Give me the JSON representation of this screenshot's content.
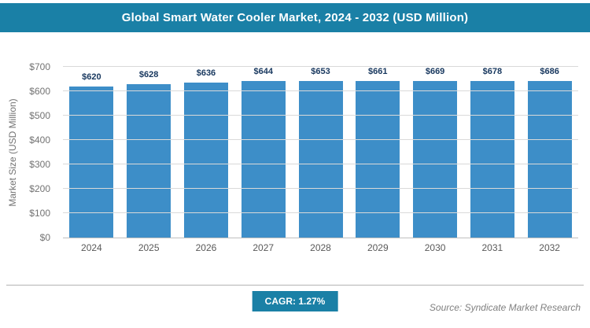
{
  "header": {
    "title": "Global Smart Water Cooler Market, 2024 - 2032 (USD Million)"
  },
  "chart_data": {
    "type": "bar",
    "title": "Global Smart Water Cooler Market, 2024 - 2032 (USD Million)",
    "categories": [
      "2024",
      "2025",
      "2026",
      "2027",
      "2028",
      "2029",
      "2030",
      "2031",
      "2032"
    ],
    "values": [
      620,
      628,
      636,
      644,
      653,
      661,
      669,
      678,
      686
    ],
    "value_labels": [
      "$620",
      "$628",
      "$636",
      "$644",
      "$653",
      "$661",
      "$669",
      "$678",
      "$686"
    ],
    "xlabel": "",
    "ylabel": "Market Size (USD Million)",
    "ylim": [
      0,
      700
    ],
    "ytick_values": [
      0,
      100,
      200,
      300,
      400,
      500,
      600,
      700
    ],
    "ytick_labels": [
      "$0",
      "$100",
      "$200",
      "$300",
      "$400",
      "$500",
      "$600",
      "$700"
    ],
    "grid": "horizontal",
    "legend": "none"
  },
  "footer": {
    "cagr_label": "CAGR: 1.27%",
    "source": "Source: Syndicate Market Research"
  },
  "colors": {
    "accent": "#1a80a6",
    "bar": "#3d8ec8",
    "value_label": "#17375e",
    "axis_text": "#737373",
    "gridline": "#d9d9d9",
    "baseline": "#bfbfbf",
    "footer_line": "#b3b3b3",
    "source_text": "#808080"
  }
}
